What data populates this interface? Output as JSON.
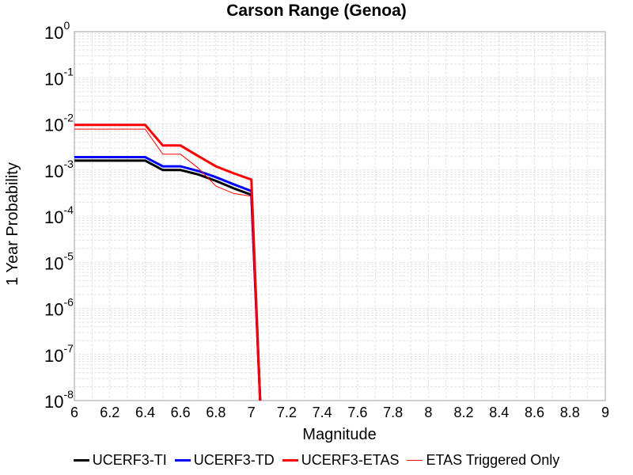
{
  "chart_data": {
    "type": "line",
    "title": "Carson Range (Genoa)",
    "xlabel": "Magnitude",
    "ylabel": "1 Year Probability",
    "xlim": [
      6,
      9
    ],
    "ylim": [
      1e-08,
      1
    ],
    "yscale": "log",
    "grid": true,
    "legend_position": "bottom",
    "x_ticks": [
      "6",
      "6.2",
      "6.4",
      "6.6",
      "6.8",
      "7",
      "7.2",
      "7.4",
      "7.6",
      "7.8",
      "8",
      "8.2",
      "8.4",
      "8.6",
      "8.8",
      "9"
    ],
    "y_ticks": [
      {
        "base": "10",
        "exp": "0"
      },
      {
        "base": "10",
        "exp": "-1"
      },
      {
        "base": "10",
        "exp": "-2"
      },
      {
        "base": "10",
        "exp": "-3"
      },
      {
        "base": "10",
        "exp": "-4"
      },
      {
        "base": "10",
        "exp": "-5"
      },
      {
        "base": "10",
        "exp": "-6"
      },
      {
        "base": "10",
        "exp": "-7"
      },
      {
        "base": "10",
        "exp": "-8"
      }
    ],
    "series": [
      {
        "name": "UCERF3-TI",
        "color": "#000000",
        "width": 3,
        "x": [
          6.0,
          6.1,
          6.2,
          6.3,
          6.4,
          6.5,
          6.6,
          6.7,
          6.8,
          6.9,
          7.0,
          7.05
        ],
        "y": [
          0.0016,
          0.0016,
          0.0016,
          0.0016,
          0.0016,
          0.001,
          0.001,
          0.0008,
          0.00058,
          0.0004,
          0.00029,
          1e-08
        ]
      },
      {
        "name": "UCERF3-TD",
        "color": "#0000ff",
        "width": 3,
        "x": [
          6.0,
          6.1,
          6.2,
          6.3,
          6.4,
          6.5,
          6.6,
          6.7,
          6.8,
          6.9,
          7.0,
          7.05
        ],
        "y": [
          0.0019,
          0.0019,
          0.0019,
          0.0019,
          0.0019,
          0.0012,
          0.0012,
          0.00095,
          0.0007,
          0.00049,
          0.00035,
          1e-08
        ]
      },
      {
        "name": "UCERF3-ETAS",
        "color": "#ff0000",
        "width": 3,
        "x": [
          6.0,
          6.1,
          6.2,
          6.3,
          6.4,
          6.5,
          6.6,
          6.7,
          6.8,
          6.9,
          7.0,
          7.05
        ],
        "y": [
          0.0095,
          0.0095,
          0.0095,
          0.0095,
          0.0095,
          0.0034,
          0.0034,
          0.002,
          0.0012,
          0.00085,
          0.00062,
          1e-08
        ]
      },
      {
        "name": "ETAS Triggered Only",
        "color": "#ff0000",
        "width": 1,
        "x": [
          6.0,
          6.1,
          6.2,
          6.3,
          6.4,
          6.5,
          6.6,
          6.7,
          6.8,
          6.9,
          7.0,
          7.05
        ],
        "y": [
          0.0077,
          0.0077,
          0.0077,
          0.0077,
          0.0077,
          0.0022,
          0.0022,
          0.0011,
          0.00045,
          0.00031,
          0.00027,
          1e-08
        ]
      }
    ]
  }
}
